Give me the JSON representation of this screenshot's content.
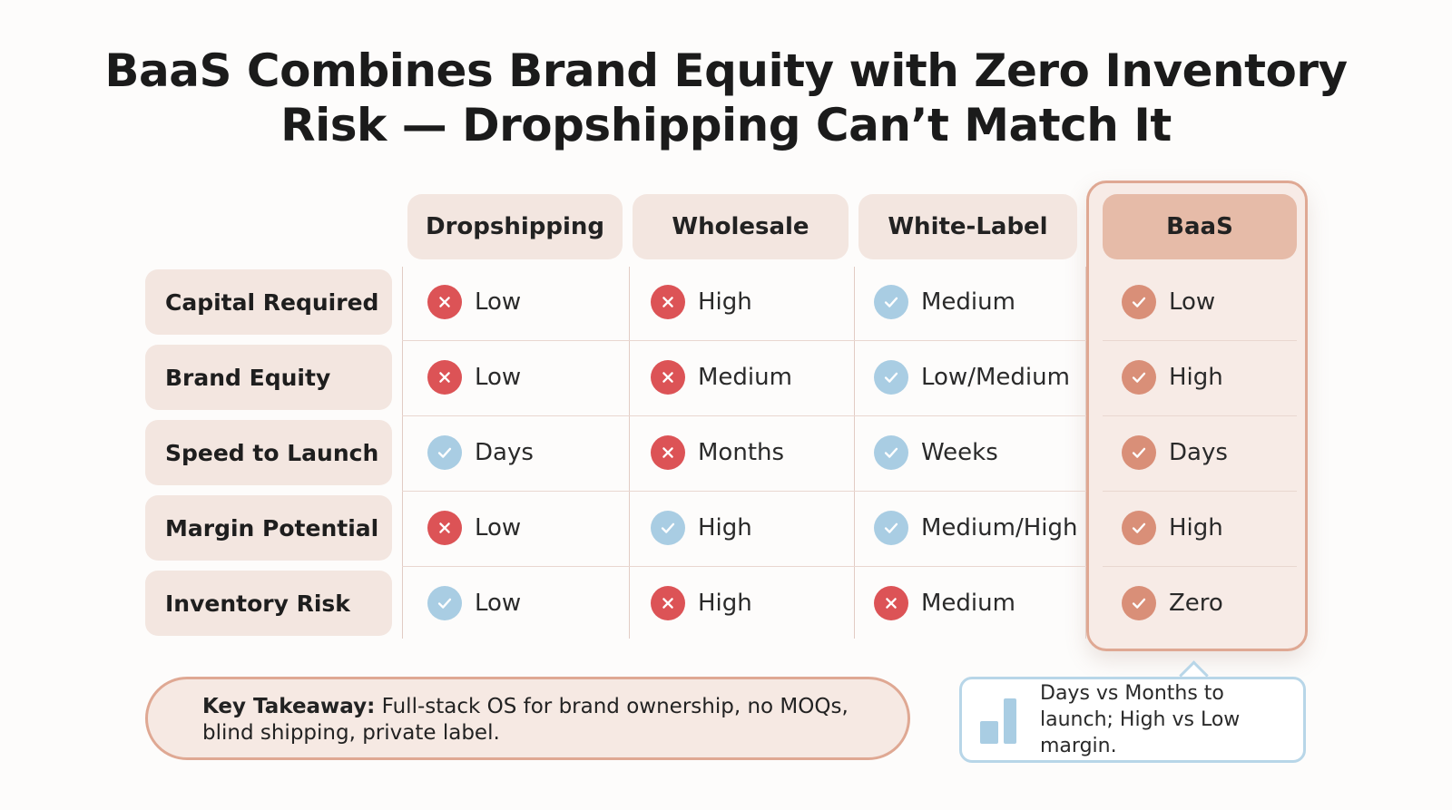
{
  "title": {
    "line1": "BaaS Combines Brand Equity with Zero Inventory",
    "line2": "Risk — Dropshipping Can’t Match It"
  },
  "columns": [
    "Dropshipping",
    "Wholesale",
    "White-Label",
    "BaaS"
  ],
  "rows": [
    {
      "label": "Capital Required",
      "cells": [
        {
          "status": "x",
          "text": "Low"
        },
        {
          "status": "x",
          "text": "High"
        },
        {
          "status": "check",
          "text": "Medium"
        },
        {
          "status": "ok",
          "text": "Low"
        }
      ]
    },
    {
      "label": "Brand Equity",
      "cells": [
        {
          "status": "x",
          "text": "Low"
        },
        {
          "status": "x",
          "text": "Medium"
        },
        {
          "status": "check",
          "text": "Low/Medium"
        },
        {
          "status": "ok",
          "text": "High"
        }
      ]
    },
    {
      "label": "Speed to Launch",
      "cells": [
        {
          "status": "check",
          "text": "Days"
        },
        {
          "status": "x",
          "text": "Months"
        },
        {
          "status": "check",
          "text": "Weeks"
        },
        {
          "status": "ok",
          "text": "Days"
        }
      ]
    },
    {
      "label": "Margin Potential",
      "cells": [
        {
          "status": "x",
          "text": "Low"
        },
        {
          "status": "check",
          "text": "High"
        },
        {
          "status": "check",
          "text": "Medium/High"
        },
        {
          "status": "ok",
          "text": "High"
        }
      ]
    },
    {
      "label": "Inventory Risk",
      "cells": [
        {
          "status": "check",
          "text": "Low"
        },
        {
          "status": "x",
          "text": "High"
        },
        {
          "status": "x",
          "text": "Medium"
        },
        {
          "status": "ok",
          "text": "Zero"
        }
      ]
    }
  ],
  "icons": {
    "x": "x-circle-icon",
    "check": "check-circle-icon",
    "ok": "check-circle-icon"
  },
  "takeaway": {
    "label": "Key Takeaway:",
    "text": " Full-stack OS for brand ownership, no MOQs, blind shipping, private label."
  },
  "note": {
    "icon": "bar-chart-icon",
    "text": "Days vs Months to launch; High vs Low margin."
  },
  "colors": {
    "negative": "#dc5356",
    "neutral_positive": "#a9cde3",
    "baas_positive": "#d98f78",
    "accent": "#dfa893"
  }
}
